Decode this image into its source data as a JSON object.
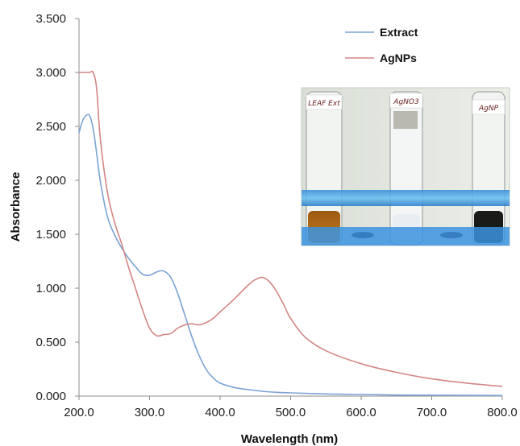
{
  "chart_data": {
    "type": "line",
    "title": "",
    "xlabel": "Wavelength (nm)",
    "ylabel": "Absorbance",
    "xlim": [
      200,
      800
    ],
    "ylim": [
      0,
      3.5
    ],
    "grid": false,
    "legend_position": "top-right",
    "x_ticks": [
      "200.0",
      "300.0",
      "400.0",
      "500.0",
      "600.0",
      "700.0",
      "800.0"
    ],
    "y_ticks": [
      "0.000",
      "0.500",
      "1.000",
      "1.500",
      "2.000",
      "2.500",
      "3.000",
      "3.500"
    ],
    "series": [
      {
        "name": "Extract",
        "color": "#7ba3d4",
        "x": [
          200,
          205,
          210,
          215,
          220,
          225,
          230,
          240,
          250,
          260,
          270,
          280,
          290,
          300,
          310,
          320,
          330,
          340,
          350,
          360,
          370,
          380,
          390,
          400,
          420,
          440,
          460,
          480,
          500,
          550,
          600,
          650,
          700,
          800
        ],
        "y": [
          2.44,
          2.55,
          2.6,
          2.6,
          2.48,
          2.25,
          2.0,
          1.67,
          1.5,
          1.38,
          1.28,
          1.2,
          1.13,
          1.12,
          1.15,
          1.16,
          1.1,
          0.95,
          0.75,
          0.55,
          0.38,
          0.25,
          0.17,
          0.12,
          0.08,
          0.06,
          0.045,
          0.035,
          0.03,
          0.02,
          0.015,
          0.01,
          0.008,
          0.005
        ]
      },
      {
        "name": "AgNPs",
        "color": "#d48585",
        "x": [
          200,
          205,
          210,
          215,
          220,
          225,
          230,
          240,
          250,
          260,
          270,
          280,
          290,
          300,
          310,
          320,
          330,
          340,
          350,
          360,
          370,
          380,
          390,
          400,
          420,
          440,
          450,
          460,
          470,
          480,
          490,
          500,
          520,
          550,
          600,
          650,
          700,
          750,
          800
        ],
        "y": [
          3.0,
          3.0,
          3.0,
          3.0,
          3.0,
          2.85,
          2.4,
          1.9,
          1.62,
          1.42,
          1.2,
          1.0,
          0.8,
          0.63,
          0.56,
          0.57,
          0.58,
          0.63,
          0.66,
          0.67,
          0.66,
          0.68,
          0.72,
          0.78,
          0.9,
          1.03,
          1.08,
          1.1,
          1.06,
          0.97,
          0.85,
          0.72,
          0.55,
          0.42,
          0.3,
          0.22,
          0.16,
          0.12,
          0.09
        ]
      }
    ],
    "inset_photo": {
      "tube_labels": [
        "LEAF Ext",
        "AgNO3",
        "AgNP"
      ]
    }
  }
}
